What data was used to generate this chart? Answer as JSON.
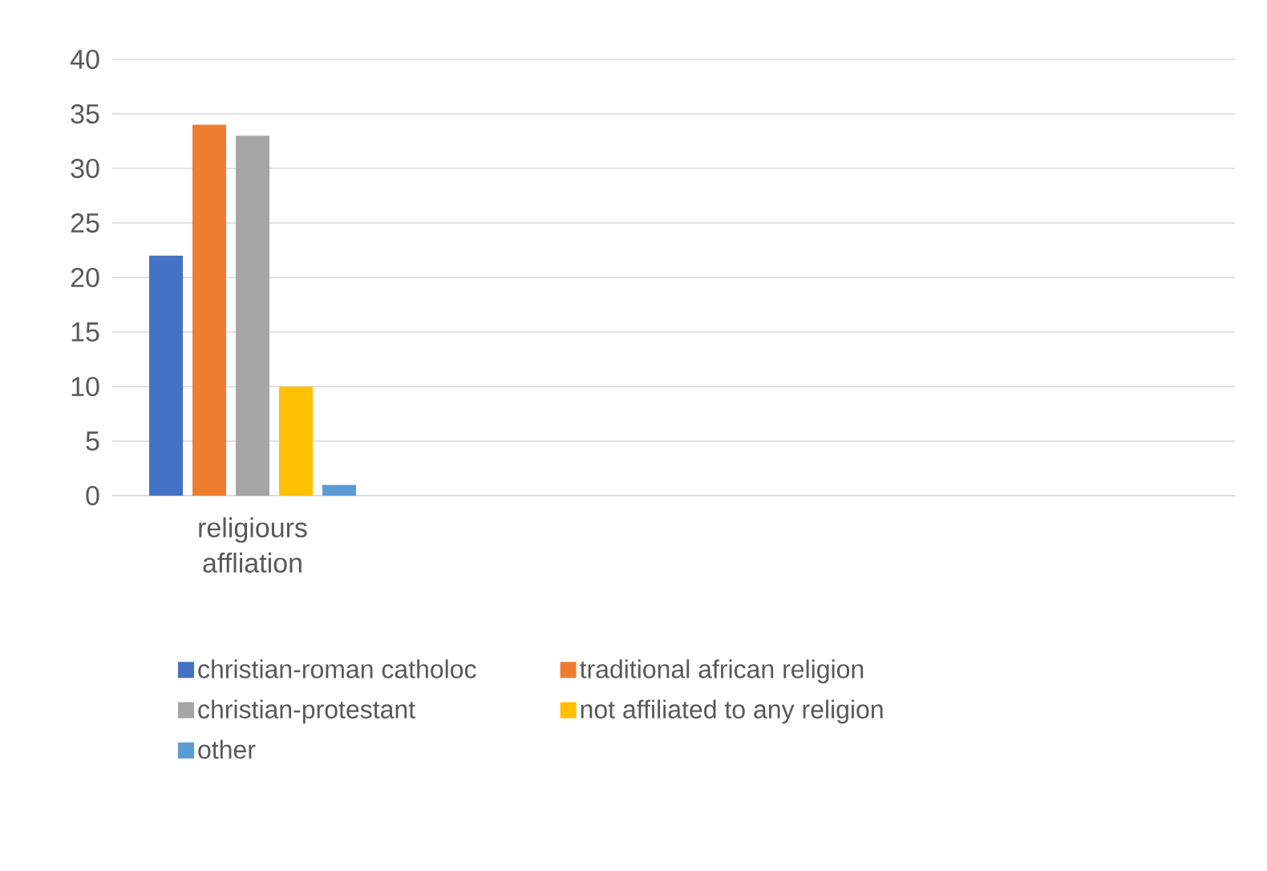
{
  "chart_data": {
    "type": "bar",
    "categories": [
      "religiours affliation",
      null,
      null,
      null
    ],
    "series": [
      {
        "name": "christian-roman catholoc",
        "color": "#4472c4",
        "values": [
          22,
          null,
          null,
          null
        ]
      },
      {
        "name": "traditional african religion",
        "color": "#ed7d31",
        "values": [
          34,
          null,
          null,
          null
        ]
      },
      {
        "name": "christian-protestant",
        "color": "#a5a5a5",
        "values": [
          33,
          null,
          null,
          null
        ]
      },
      {
        "name": "not affiliated to any religion",
        "color": "#ffc000",
        "values": [
          10,
          null,
          null,
          null
        ]
      },
      {
        "name": "other",
        "color": "#5b9bd5",
        "values": [
          1,
          null,
          null,
          null
        ]
      }
    ],
    "ylim": [
      0,
      40
    ],
    "yticks": [
      0,
      5,
      10,
      15,
      20,
      25,
      30,
      35,
      40
    ],
    "grid": "y",
    "legend": "bottom"
  }
}
